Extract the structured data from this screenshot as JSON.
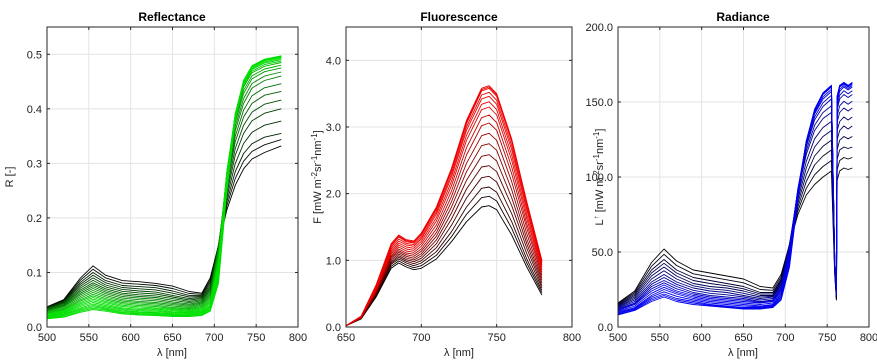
{
  "chart_data": [
    {
      "type": "line",
      "title": "Reflectance",
      "xlabel": "λ [nm]",
      "ylabel": "R [-]",
      "xlim": [
        500,
        800
      ],
      "ylim": [
        0,
        0.55
      ],
      "xticks": [
        500,
        550,
        600,
        650,
        700,
        750,
        800
      ],
      "xtick_labels": [
        "500",
        "550",
        "600",
        "650",
        "700",
        "750",
        "800"
      ],
      "yticks": [
        0,
        0.1,
        0.2,
        0.3,
        0.4,
        0.5
      ],
      "ytick_labels": [
        "0.0",
        "0.1",
        "0.2",
        "0.3",
        "0.4",
        "0.5"
      ],
      "grid": true,
      "color_dark": "#000000",
      "color_light": "#00e000",
      "x": [
        500,
        520,
        540,
        555,
        570,
        590,
        610,
        630,
        650,
        670,
        685,
        695,
        705,
        715,
        725,
        735,
        745,
        760,
        780
      ],
      "series": [
        {
          "values": [
            0.037,
            0.05,
            0.09,
            0.112,
            0.095,
            0.085,
            0.083,
            0.08,
            0.075,
            0.065,
            0.062,
            0.09,
            0.15,
            0.215,
            0.26,
            0.29,
            0.308,
            0.32,
            0.332
          ]
        },
        {
          "values": [
            0.036,
            0.048,
            0.082,
            0.1,
            0.085,
            0.076,
            0.074,
            0.072,
            0.066,
            0.058,
            0.058,
            0.082,
            0.15,
            0.23,
            0.285,
            0.318,
            0.336,
            0.348,
            0.355
          ]
        },
        {
          "values": [
            0.035,
            0.046,
            0.075,
            0.09,
            0.077,
            0.069,
            0.066,
            0.064,
            0.058,
            0.052,
            0.054,
            0.074,
            0.15,
            0.245,
            0.315,
            0.355,
            0.378,
            0.392,
            0.4
          ]
        },
        {
          "values": [
            0.033,
            0.043,
            0.068,
            0.081,
            0.07,
            0.062,
            0.059,
            0.057,
            0.052,
            0.047,
            0.05,
            0.068,
            0.15,
            0.26,
            0.34,
            0.385,
            0.41,
            0.425,
            0.432
          ]
        },
        {
          "values": [
            0.031,
            0.04,
            0.062,
            0.074,
            0.064,
            0.056,
            0.053,
            0.051,
            0.046,
            0.042,
            0.046,
            0.062,
            0.145,
            0.27,
            0.36,
            0.41,
            0.438,
            0.452,
            0.46
          ]
        },
        {
          "values": [
            0.029,
            0.037,
            0.056,
            0.067,
            0.058,
            0.05,
            0.047,
            0.045,
            0.041,
            0.038,
            0.042,
            0.056,
            0.14,
            0.28,
            0.375,
            0.428,
            0.455,
            0.468,
            0.475
          ]
        },
        {
          "values": [
            0.026,
            0.033,
            0.05,
            0.06,
            0.052,
            0.045,
            0.042,
            0.04,
            0.036,
            0.034,
            0.038,
            0.05,
            0.13,
            0.285,
            0.385,
            0.44,
            0.466,
            0.478,
            0.485
          ]
        },
        {
          "values": [
            0.024,
            0.03,
            0.045,
            0.054,
            0.047,
            0.04,
            0.037,
            0.035,
            0.032,
            0.03,
            0.034,
            0.045,
            0.12,
            0.285,
            0.39,
            0.446,
            0.472,
            0.484,
            0.49
          ]
        },
        {
          "values": [
            0.021,
            0.027,
            0.04,
            0.048,
            0.042,
            0.035,
            0.032,
            0.031,
            0.028,
            0.027,
            0.03,
            0.04,
            0.11,
            0.28,
            0.392,
            0.45,
            0.476,
            0.488,
            0.494
          ]
        },
        {
          "values": [
            0.019,
            0.024,
            0.035,
            0.042,
            0.037,
            0.031,
            0.028,
            0.027,
            0.025,
            0.024,
            0.027,
            0.036,
            0.1,
            0.27,
            0.39,
            0.452,
            0.478,
            0.49,
            0.496
          ]
        },
        {
          "values": [
            0.017,
            0.021,
            0.031,
            0.037,
            0.033,
            0.027,
            0.025,
            0.024,
            0.022,
            0.021,
            0.024,
            0.032,
            0.09,
            0.26,
            0.385,
            0.452,
            0.479,
            0.491,
            0.497
          ]
        },
        {
          "values": [
            0.015,
            0.018,
            0.027,
            0.032,
            0.029,
            0.024,
            0.022,
            0.021,
            0.019,
            0.019,
            0.021,
            0.029,
            0.08,
            0.25,
            0.38,
            0.45,
            0.478,
            0.49,
            0.497
          ]
        }
      ]
    },
    {
      "type": "line",
      "title": "Fluorescence",
      "xlabel": "λ [nm]",
      "ylabel": "F [mW m-2sr-1nm-1]",
      "ylabel_parts": {
        "a": "F [mW m",
        "b": "-2",
        "c": "sr",
        "d": "-1",
        "e": "nm",
        "f": "-1",
        "g": "]"
      },
      "xlim": [
        650,
        800
      ],
      "ylim": [
        0,
        4.5
      ],
      "xticks": [
        650,
        700,
        750,
        800
      ],
      "xtick_labels": [
        "650",
        "700",
        "750",
        "800"
      ],
      "yticks": [
        0,
        1,
        2,
        3,
        4
      ],
      "ytick_labels": [
        "0.0",
        "1.0",
        "2.0",
        "3.0",
        "4.0"
      ],
      "grid": true,
      "color_dark": "#000000",
      "color_light": "#ee0000",
      "x": [
        650,
        660,
        670,
        680,
        685,
        690,
        695,
        700,
        710,
        720,
        730,
        740,
        745,
        750,
        760,
        770,
        780
      ],
      "series": [
        {
          "values": [
            0.02,
            0.12,
            0.45,
            0.88,
            0.96,
            0.9,
            0.86,
            0.88,
            1.02,
            1.28,
            1.58,
            1.8,
            1.82,
            1.76,
            1.38,
            0.9,
            0.48
          ]
        },
        {
          "values": [
            0.02,
            0.13,
            0.48,
            0.94,
            1.02,
            0.96,
            0.92,
            0.96,
            1.13,
            1.43,
            1.8,
            2.08,
            2.1,
            2.02,
            1.58,
            1.02,
            0.55
          ]
        },
        {
          "values": [
            0.02,
            0.13,
            0.5,
            0.98,
            1.07,
            1.01,
            0.98,
            1.03,
            1.25,
            1.62,
            2.07,
            2.4,
            2.42,
            2.33,
            1.82,
            1.18,
            0.62
          ]
        },
        {
          "values": [
            0.02,
            0.14,
            0.52,
            1.03,
            1.12,
            1.06,
            1.03,
            1.1,
            1.36,
            1.8,
            2.33,
            2.72,
            2.75,
            2.65,
            2.06,
            1.32,
            0.7
          ]
        },
        {
          "values": [
            0.02,
            0.14,
            0.54,
            1.07,
            1.17,
            1.11,
            1.09,
            1.17,
            1.47,
            1.96,
            2.58,
            3.02,
            3.06,
            2.95,
            2.3,
            1.48,
            0.78
          ]
        },
        {
          "values": [
            0.02,
            0.15,
            0.57,
            1.12,
            1.23,
            1.17,
            1.15,
            1.25,
            1.59,
            2.12,
            2.8,
            3.26,
            3.3,
            3.18,
            2.5,
            1.62,
            0.86
          ]
        },
        {
          "values": [
            0.02,
            0.15,
            0.59,
            1.17,
            1.29,
            1.23,
            1.21,
            1.32,
            1.69,
            2.25,
            2.95,
            3.42,
            3.46,
            3.34,
            2.66,
            1.75,
            0.93
          ]
        },
        {
          "values": [
            0.02,
            0.16,
            0.62,
            1.22,
            1.35,
            1.28,
            1.26,
            1.38,
            1.76,
            2.34,
            3.05,
            3.54,
            3.58,
            3.46,
            2.78,
            1.85,
            0.98
          ]
        },
        {
          "values": [
            0.02,
            0.16,
            0.63,
            1.25,
            1.38,
            1.31,
            1.29,
            1.41,
            1.8,
            2.38,
            3.1,
            3.58,
            3.62,
            3.5,
            2.82,
            1.88,
            1.0
          ]
        }
      ]
    },
    {
      "type": "line",
      "title": "Radiance",
      "xlabel": "λ [nm]",
      "ylabel": "L↑ [mW m-2sr-1nm-1]",
      "ylabel_parts": {
        "a": "L",
        "arrow": "↑",
        "b": " [mW m",
        "c": "-2",
        "d": "sr",
        "e": "-1",
        "f": "nm",
        "g": "-1",
        "h": "]"
      },
      "xlim": [
        500,
        800
      ],
      "ylim": [
        0,
        200
      ],
      "xticks": [
        500,
        550,
        600,
        650,
        700,
        750,
        800
      ],
      "xtick_labels": [
        "500",
        "550",
        "600",
        "650",
        "700",
        "750",
        "800"
      ],
      "yticks": [
        0,
        50,
        100,
        150,
        200
      ],
      "ytick_labels": [
        "0.0",
        "50.0",
        "100.0",
        "150.0",
        "200.0"
      ],
      "grid": true,
      "color_dark": "#000000",
      "color_light": "#0000ee",
      "x": [
        500,
        520,
        540,
        555,
        570,
        590,
        610,
        630,
        650,
        670,
        685,
        695,
        705,
        715,
        725,
        735,
        745,
        755,
        759,
        761,
        762,
        765,
        770,
        775,
        780
      ],
      "series": [
        {
          "values": [
            16,
            24,
            43,
            52,
            44,
            38,
            36,
            34,
            32,
            27,
            26,
            35,
            55,
            75,
            88,
            95,
            100,
            104,
            35,
            18,
            98,
            104,
            106,
            105,
            106
          ]
        },
        {
          "values": [
            15,
            22,
            38,
            45,
            38,
            33,
            31,
            29,
            27,
            23,
            23,
            32,
            55,
            80,
            97,
            108,
            114,
            118,
            38,
            19,
            112,
            118,
            120,
            119,
            120
          ]
        },
        {
          "values": [
            14,
            20,
            34,
            40,
            34,
            29,
            27,
            26,
            24,
            21,
            21,
            30,
            55,
            85,
            106,
            120,
            127,
            131,
            40,
            20,
            125,
            131,
            134,
            132,
            134
          ]
        },
        {
          "values": [
            13,
            18,
            30,
            35,
            30,
            26,
            24,
            23,
            21,
            19,
            20,
            28,
            55,
            90,
            115,
            131,
            139,
            143,
            42,
            21,
            137,
            143,
            146,
            144,
            146
          ]
        },
        {
          "values": [
            12,
            16,
            27,
            31,
            27,
            23,
            21,
            20,
            19,
            17,
            18,
            26,
            53,
            92,
            120,
            138,
            147,
            152,
            44,
            22,
            145,
            152,
            155,
            153,
            155
          ]
        },
        {
          "values": [
            11,
            15,
            24,
            28,
            24,
            21,
            19,
            18,
            17,
            16,
            17,
            24,
            50,
            92,
            123,
            142,
            152,
            157,
            45,
            22,
            150,
            157,
            160,
            158,
            160
          ]
        },
        {
          "values": [
            10,
            13,
            21,
            25,
            22,
            19,
            17,
            16,
            15,
            14,
            15,
            22,
            47,
            90,
            124,
            144,
            155,
            160,
            46,
            23,
            153,
            160,
            162,
            160,
            162
          ]
        },
        {
          "values": [
            9,
            12,
            19,
            22,
            19,
            17,
            15,
            14,
            13,
            13,
            14,
            20,
            44,
            88,
            124,
            145,
            156,
            161,
            46,
            23,
            154,
            161,
            163,
            161,
            163
          ]
        },
        {
          "values": [
            8,
            11,
            17,
            20,
            17,
            15,
            14,
            13,
            12,
            12,
            13,
            18,
            40,
            85,
            123,
            145,
            156,
            161,
            46,
            23,
            154,
            161,
            163,
            161,
            163
          ]
        }
      ]
    }
  ]
}
